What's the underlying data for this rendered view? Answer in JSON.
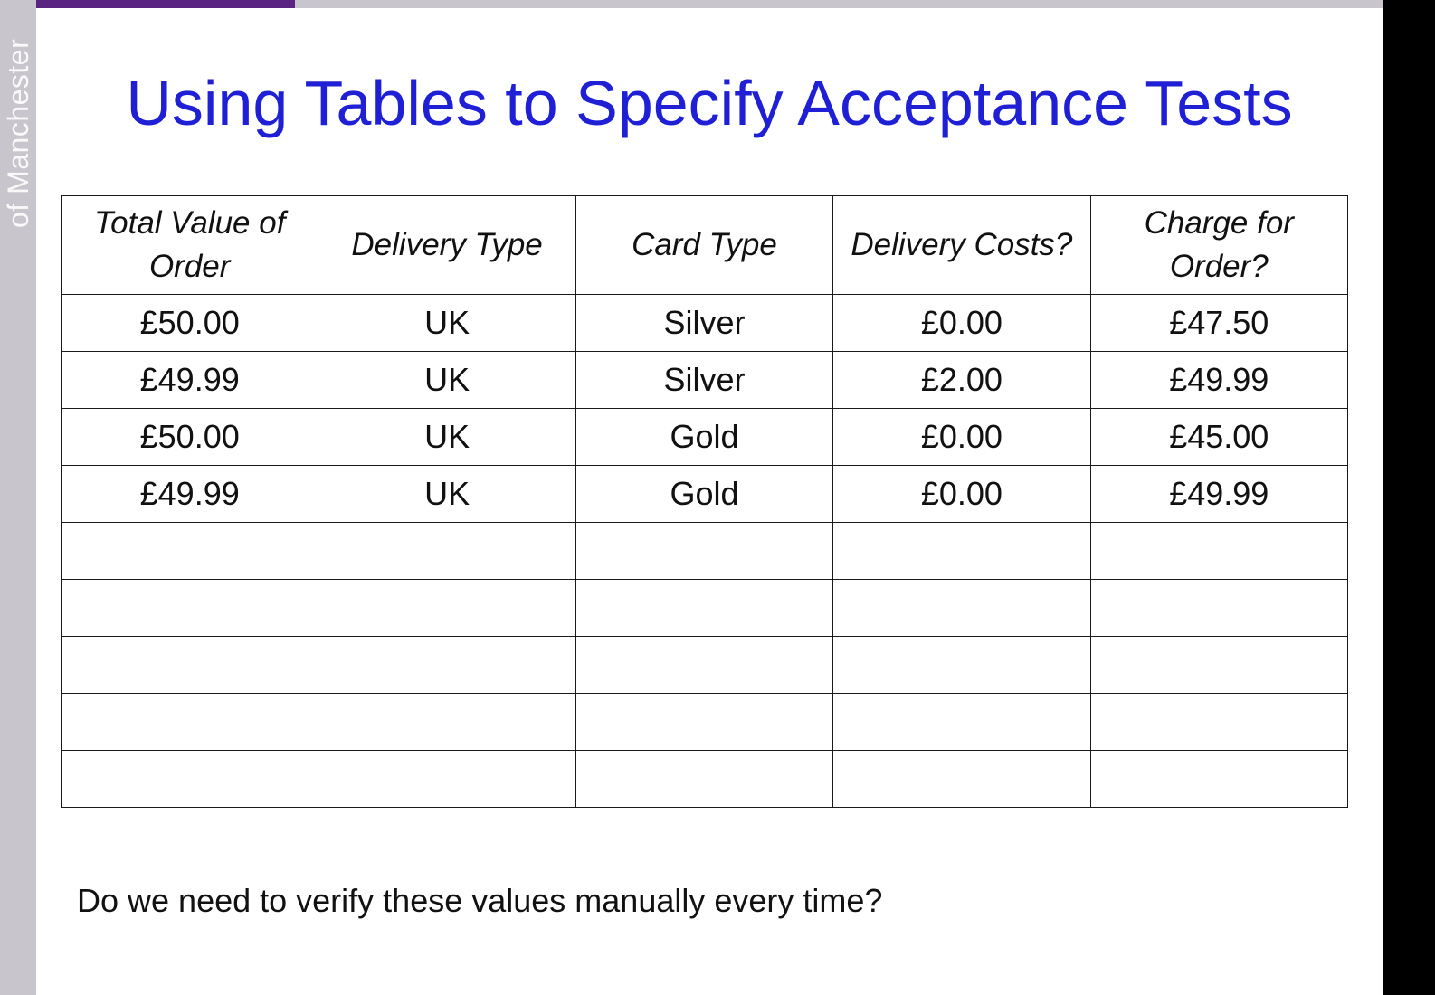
{
  "side_label": "of Manchester",
  "title": "Using Tables to Specify Acceptance Tests",
  "table": {
    "headers": [
      "Total Value of Order",
      "Delivery Type",
      "Card Type",
      "Delivery Costs?",
      "Charge for Order?"
    ],
    "rows": [
      [
        "£50.00",
        "UK",
        "Silver",
        "£0.00",
        "£47.50"
      ],
      [
        "£49.99",
        "UK",
        "Silver",
        "£2.00",
        "£49.99"
      ],
      [
        "£50.00",
        "UK",
        "Gold",
        "£0.00",
        "£45.00"
      ],
      [
        "£49.99",
        "UK",
        "Gold",
        "£0.00",
        "£49.99"
      ],
      [
        "",
        "",
        "",
        "",
        ""
      ],
      [
        "",
        "",
        "",
        "",
        ""
      ],
      [
        "",
        "",
        "",
        "",
        ""
      ],
      [
        "",
        "",
        "",
        "",
        ""
      ],
      [
        "",
        "",
        "",
        "",
        ""
      ]
    ]
  },
  "question": "Do we need to verify these values manually every time?",
  "colors": {
    "title": "#1f1fd6",
    "accent_bar": "#5a2482",
    "side_band": "#c8c6cc"
  }
}
